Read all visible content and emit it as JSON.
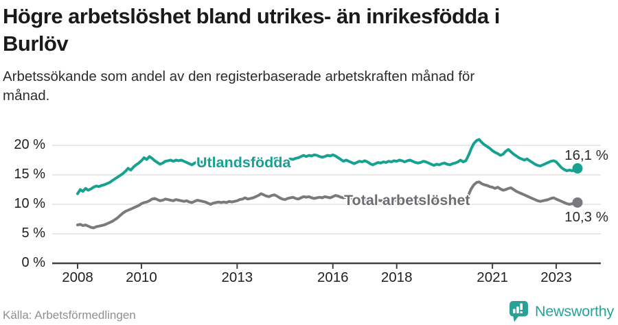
{
  "header": {
    "title_lines": [
      "Högre arbetslöshet bland utrikes- än inrikesfödda i",
      "Burlöv"
    ],
    "subtitle_lines": [
      "Arbetssökande som andel av den registerbaserade arbetskraften månad för",
      "månad."
    ]
  },
  "footer": {
    "source": "Källa: Arbetsförmedlingen",
    "brand": "Newsworthy",
    "brand_icon": "newsworthy-speech-bubble-bar-chart-icon"
  },
  "colors": {
    "accent_teal": "#16a191",
    "line_gray": "#7a7a7e",
    "gray_label": "#6e6e72",
    "grid": "#dbdbdb",
    "axis": "#404040",
    "title_text": "#1a1a1a",
    "muted_text": "#8f8f8f"
  },
  "chart_data": {
    "type": "line",
    "title": "Högre arbetslöshet bland utrikes- än inrikesfödda i Burlöv",
    "subtitle": "Arbetssökande som andel av den registerbaserade arbetskraften månad för månad.",
    "unit": "%",
    "x_start_year": 2008,
    "points_per_year": 12,
    "x_ticks": [
      2008,
      2010,
      2013,
      2016,
      2018,
      2021,
      2023
    ],
    "y_tick_values": [
      20,
      15,
      10,
      5,
      0
    ],
    "y_tick_labels": [
      "20 %",
      "15 %",
      "10 %",
      "5 %",
      "0 %"
    ],
    "ylim": [
      0,
      22
    ],
    "xlim": [
      2007.2,
      2024.4
    ],
    "grid": "horizontal",
    "legend": "inline-labels",
    "series": [
      {
        "name": "Utlandsfödda",
        "color": "#16a191",
        "end_label": "16,1 %",
        "last_value": 16.1,
        "values": [
          11.8,
          12.5,
          12.2,
          12.7,
          12.4,
          12.6,
          12.9,
          13.1,
          13.0,
          13.2,
          13.3,
          13.5,
          13.7,
          14.0,
          14.3,
          14.6,
          14.9,
          15.2,
          15.6,
          16.1,
          15.8,
          16.3,
          16.7,
          17.0,
          17.4,
          17.9,
          17.6,
          18.1,
          17.8,
          17.4,
          17.1,
          16.8,
          17.0,
          17.3,
          17.4,
          17.5,
          17.3,
          17.5,
          17.4,
          17.5,
          17.3,
          17.1,
          16.9,
          16.7,
          17.0,
          17.2,
          17.3,
          17.1,
          17.2,
          16.9,
          16.6,
          16.4,
          16.7,
          16.9,
          17.1,
          17.0,
          16.9,
          17.0,
          17.1,
          16.9,
          17.1,
          17.3,
          17.2,
          17.0,
          17.2,
          17.4,
          17.6,
          17.4,
          17.2,
          17.3,
          17.1,
          17.4,
          17.6,
          17.8,
          17.7,
          17.8,
          17.6,
          17.4,
          17.3,
          17.5,
          17.7,
          17.6,
          17.8,
          17.9,
          18.1,
          18.3,
          18.1,
          18.3,
          18.2,
          18.4,
          18.3,
          18.1,
          18.0,
          18.1,
          18.3,
          18.2,
          18.4,
          18.2,
          17.9,
          17.6,
          17.3,
          17.5,
          17.3,
          17.1,
          16.9,
          17.1,
          17.3,
          17.2,
          17.4,
          17.2,
          16.9,
          16.7,
          16.9,
          17.1,
          17.0,
          17.2,
          17.1,
          17.3,
          17.2,
          17.4,
          17.3,
          17.5,
          17.4,
          17.2,
          17.4,
          17.5,
          17.3,
          17.1,
          17.0,
          17.1,
          17.3,
          17.2,
          17.0,
          16.8,
          16.6,
          16.8,
          16.7,
          16.9,
          17.0,
          16.8,
          16.7,
          16.9,
          17.0,
          17.2,
          17.5,
          17.2,
          17.4,
          18.3,
          19.4,
          20.3,
          20.8,
          21.0,
          20.5,
          20.1,
          19.8,
          19.5,
          19.1,
          18.8,
          18.6,
          18.3,
          18.5,
          19.0,
          19.3,
          18.9,
          18.5,
          18.2,
          17.9,
          17.7,
          17.5,
          17.7,
          17.4,
          17.1,
          16.8,
          16.6,
          16.5,
          16.7,
          16.9,
          17.1,
          17.3,
          17.4,
          17.2,
          16.7,
          16.2,
          15.9,
          15.7,
          15.8,
          15.7,
          15.9,
          16.1
        ]
      },
      {
        "name": "Total arbetslöshet",
        "color": "#7a7a7e",
        "end_label": "10,3 %",
        "last_value": 10.3,
        "values": [
          6.5,
          6.6,
          6.4,
          6.5,
          6.3,
          6.1,
          6.0,
          6.2,
          6.3,
          6.4,
          6.5,
          6.7,
          6.9,
          7.1,
          7.4,
          7.7,
          8.1,
          8.5,
          8.8,
          9.0,
          9.2,
          9.4,
          9.6,
          9.8,
          10.1,
          10.3,
          10.4,
          10.6,
          10.9,
          11.0,
          10.8,
          10.6,
          10.7,
          10.9,
          10.8,
          10.7,
          10.6,
          10.8,
          10.7,
          10.6,
          10.5,
          10.6,
          10.4,
          10.3,
          10.5,
          10.7,
          10.6,
          10.5,
          10.4,
          10.2,
          10.0,
          10.2,
          10.3,
          10.4,
          10.3,
          10.4,
          10.3,
          10.5,
          10.4,
          10.5,
          10.6,
          10.8,
          10.9,
          11.1,
          10.9,
          11.0,
          11.1,
          11.3,
          11.5,
          11.8,
          11.6,
          11.4,
          11.3,
          11.5,
          11.6,
          11.4,
          11.1,
          10.9,
          10.8,
          11.0,
          11.1,
          11.2,
          11.0,
          10.9,
          11.1,
          11.3,
          11.2,
          11.3,
          11.1,
          11.0,
          11.1,
          11.2,
          11.1,
          11.3,
          11.2,
          11.1,
          11.3,
          11.5,
          11.4,
          11.2,
          11.1,
          11.2,
          11.1,
          11.0,
          10.9,
          11.0,
          10.9,
          10.8,
          10.7,
          10.8,
          10.6,
          10.5,
          10.6,
          10.7,
          10.6,
          10.7,
          10.6,
          10.7,
          10.6,
          10.7,
          10.6,
          10.7,
          10.6,
          10.5,
          10.6,
          10.5,
          10.4,
          10.5,
          10.4,
          10.5,
          10.6,
          10.5,
          10.4,
          10.5,
          10.4,
          10.5,
          10.6,
          10.5,
          10.6,
          10.5,
          10.6,
          10.5,
          10.6,
          10.7,
          10.8,
          10.7,
          10.9,
          11.6,
          12.6,
          13.3,
          13.7,
          13.8,
          13.5,
          13.3,
          13.2,
          13.0,
          12.9,
          12.7,
          12.9,
          12.6,
          12.4,
          12.5,
          12.7,
          12.8,
          12.5,
          12.2,
          12.0,
          11.8,
          11.6,
          11.4,
          11.2,
          11.0,
          10.8,
          10.6,
          10.5,
          10.6,
          10.7,
          10.8,
          11.0,
          11.1,
          10.9,
          10.7,
          10.5,
          10.3,
          10.1,
          10.0,
          10.1,
          10.0,
          10.3
        ]
      }
    ]
  }
}
